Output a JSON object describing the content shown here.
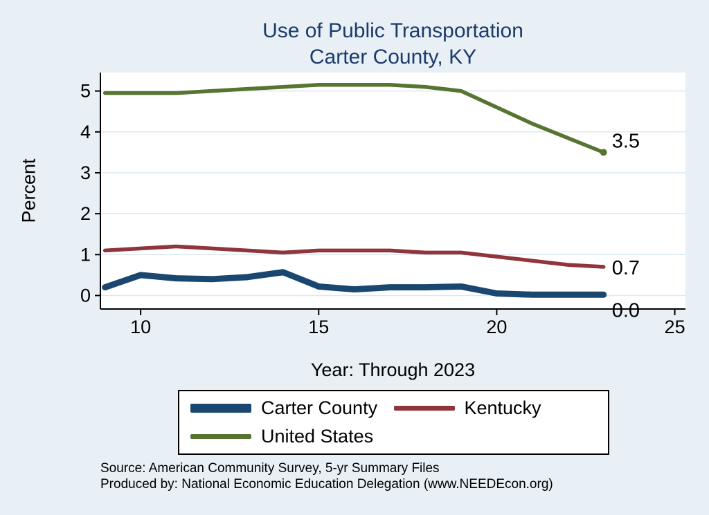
{
  "title": {
    "line1": "Use of Public Transportation",
    "line2": "Carter County, KY"
  },
  "footer": {
    "source": "Source: American Community Survey, 5-yr Summary Files",
    "produced_by": "Produced by: National Economic Education Delegation (www.NEEDEcon.org)"
  },
  "colors": {
    "page_background": "#e8f0f6",
    "plot_background": "#ffffff",
    "title_text": "#1b3b6b",
    "gridline": "#dce8f0",
    "axis": "#000000",
    "carter_county": "#1a476f",
    "kentucky": "#90353b",
    "united_states": "#577530"
  },
  "chart_data": {
    "type": "line",
    "title": "Use of Public Transportation Carter County, KY",
    "xlabel": "Year: Through 2023",
    "ylabel": "Percent",
    "x": [
      9,
      10,
      11,
      12,
      13,
      14,
      15,
      16,
      17,
      18,
      19,
      20,
      21,
      22,
      23
    ],
    "x_ticks": [
      10,
      15,
      20,
      25
    ],
    "y_ticks": [
      0,
      1,
      2,
      3,
      4,
      5
    ],
    "xlim": [
      8.87,
      25.3
    ],
    "ylim": [
      -0.33,
      5.45
    ],
    "grid": "horizontal",
    "legend_position": "bottom",
    "series": [
      {
        "name": "Carter County",
        "color": "#1a476f",
        "width": 9,
        "values": [
          0.2,
          0.5,
          0.42,
          0.4,
          0.45,
          0.57,
          0.22,
          0.15,
          0.2,
          0.2,
          0.22,
          0.05,
          0.02,
          0.02,
          0.02
        ],
        "end_label": "0.0",
        "label_dy": 23,
        "end_dot": false
      },
      {
        "name": "Kentucky",
        "color": "#90353b",
        "width": 5.5,
        "values": [
          1.1,
          1.15,
          1.2,
          1.15,
          1.1,
          1.05,
          1.1,
          1.1,
          1.1,
          1.05,
          1.05,
          0.95,
          0.85,
          0.75,
          0.7
        ],
        "end_label": "0.7",
        "label_dy": 2,
        "end_dot": false
      },
      {
        "name": "United States",
        "color": "#577530",
        "width": 5.5,
        "values": [
          4.95,
          4.95,
          4.95,
          5.0,
          5.05,
          5.1,
          5.15,
          5.15,
          5.15,
          5.1,
          5.0,
          4.6,
          4.2,
          3.85,
          3.5
        ],
        "end_label": "3.5",
        "label_dy": -16,
        "end_dot": true
      }
    ]
  }
}
